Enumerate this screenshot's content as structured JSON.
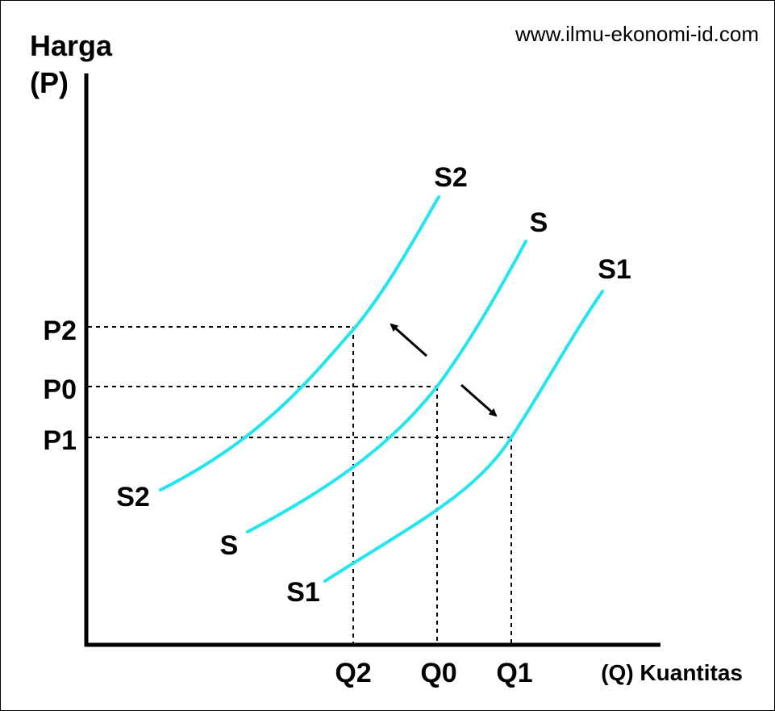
{
  "website": "www.ilmu-ekonomi-id.com",
  "y_axis": {
    "title_line1": "Harga",
    "title_line2": "(P)"
  },
  "x_axis": {
    "title": "(Q) Kuantitas"
  },
  "price_levels": [
    "P2",
    "P0",
    "P1"
  ],
  "quantity_levels": [
    "Q2",
    "Q0",
    "Q1"
  ],
  "curves": [
    {
      "label_top": "S2",
      "label_bottom": "S2"
    },
    {
      "label_top": "S",
      "label_bottom": "S"
    },
    {
      "label_top": "S1",
      "label_bottom": "S1"
    }
  ],
  "colors": {
    "curve": "#22e5f0",
    "axis": "#000000",
    "guide": "#000000"
  },
  "arrows": [
    "shift-left-up-arrow",
    "shift-right-down-arrow"
  ]
}
